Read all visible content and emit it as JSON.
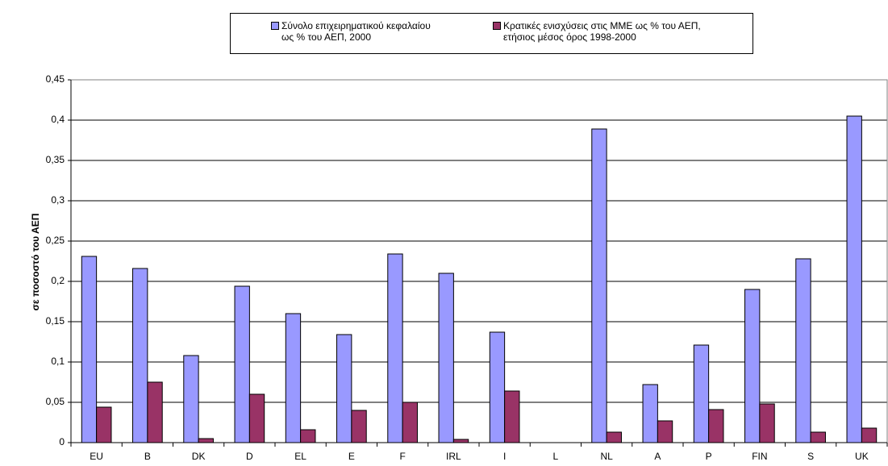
{
  "chart_data": {
    "type": "bar",
    "y_label": "σε ποσοστό του ΑΕΠ",
    "categories": [
      "EU",
      "B",
      "DK",
      "D",
      "EL",
      "E",
      "F",
      "IRL",
      "I",
      "L",
      "NL",
      "A",
      "P",
      "FIN",
      "S",
      "UK"
    ],
    "series": [
      {
        "name": "Σύνολο επιχειρηματικού κεφαλαίου\nως % του ΑΕΠ, 2000",
        "color": "#9999ff",
        "values": [
          0.231,
          0.216,
          0.108,
          0.194,
          0.16,
          0.134,
          0.234,
          0.21,
          0.137,
          null,
          0.389,
          0.072,
          0.121,
          0.19,
          0.228,
          0.405
        ]
      },
      {
        "name": "Κρατικές ενισχύσεις στις ΜΜΕ ως % του ΑΕΠ,\nετήσιος μέσος όρος 1998-2000",
        "color": "#993366",
        "values": [
          0.044,
          0.075,
          0.005,
          0.06,
          0.016,
          0.04,
          0.05,
          0.004,
          0.064,
          null,
          0.013,
          0.027,
          0.041,
          0.048,
          0.013,
          0.018
        ]
      }
    ],
    "ylim": [
      0,
      0.45
    ],
    "yticks": [
      0,
      {
        "value": 0.05,
        "label": "0,05"
      },
      {
        "value": 0.1,
        "label": "0,1"
      },
      {
        "value": 0.15,
        "label": "0,15"
      },
      {
        "value": 0.2,
        "label": "0,2"
      },
      {
        "value": 0.25,
        "label": "0,25"
      },
      {
        "value": 0.3,
        "label": "0,3"
      },
      {
        "value": 0.35,
        "label": "0,35"
      },
      {
        "value": 0.4,
        "label": "0,4"
      },
      {
        "value": 0.45,
        "label": "0,45"
      }
    ],
    "grid": true
  }
}
